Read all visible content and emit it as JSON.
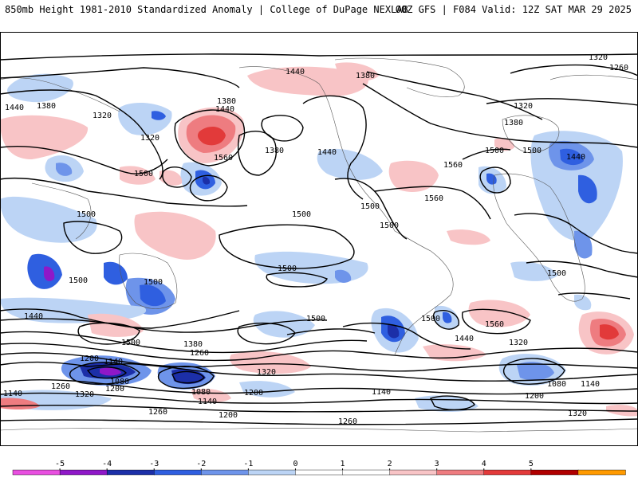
{
  "header": {
    "title": "850mb Height 1981-2010 Standardized Anomaly | College of DuPage NEXLAB",
    "run_info": "00Z GFS | F084 Valid: 12Z SAT MAR 29 2025"
  },
  "legend": {
    "ticks": [
      "-5",
      "-4",
      "-3",
      "-2",
      "-1",
      "0",
      "1",
      "2",
      "3",
      "4",
      "5"
    ],
    "colors": [
      "#e84fe0",
      "#8f18c8",
      "#1c2fa8",
      "#2f5fe0",
      "#6e94ea",
      "#bcd4f5",
      "#ffffff",
      "#ffffff",
      "#f8c4c6",
      "#ee7c80",
      "#e23a3a",
      "#b00000",
      "#ff9a00"
    ]
  },
  "contour_labels": [
    "1440",
    "1380",
    "1320",
    "1260",
    "1320",
    "1380",
    "1440",
    "1500",
    "1560",
    "1440",
    "1380",
    "1380",
    "1320",
    "1500",
    "1380",
    "1440",
    "1500",
    "1560",
    "1500",
    "1500",
    "1560",
    "1500",
    "1500",
    "1500",
    "1440",
    "1320",
    "1500",
    "1500",
    "1500",
    "1500",
    "1500",
    "1560",
    "1440",
    "1320",
    "1440",
    "1500",
    "1380",
    "1260",
    "1200",
    "1320",
    "1140",
    "1080",
    "1140",
    "1200",
    "1080",
    "1140",
    "1200",
    "1260",
    "1320",
    "1260",
    "1200",
    "1140",
    "1080",
    "1140",
    "1200",
    "1260",
    "1320"
  ]
}
